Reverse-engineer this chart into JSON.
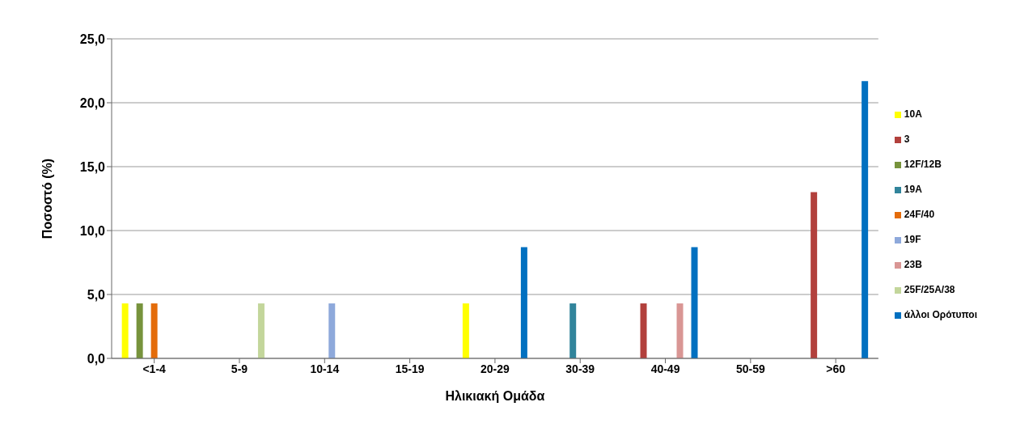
{
  "chart_data": {
    "type": "bar",
    "xlabel": "Ηλικιακή Ομάδα",
    "ylabel": "Ποσοστό (%)",
    "categories": [
      "<1-4",
      "5-9",
      "10-14",
      "15-19",
      "20-29",
      "30-39",
      "40-49",
      "50-59",
      ">60"
    ],
    "series": [
      {
        "name": "10A",
        "color": "#ffff00",
        "values": [
          4.3,
          0,
          0,
          0,
          4.3,
          0,
          0,
          0,
          0
        ]
      },
      {
        "name": "3",
        "color": "#b2403c",
        "values": [
          0,
          0,
          0,
          0,
          0,
          0,
          4.3,
          0,
          13.0
        ]
      },
      {
        "name": "12F/12B",
        "color": "#77933c",
        "values": [
          4.3,
          0,
          0,
          0,
          0,
          0,
          0,
          0,
          0
        ]
      },
      {
        "name": "19A",
        "color": "#31849b",
        "values": [
          0,
          0,
          0,
          0,
          0,
          4.3,
          0,
          0,
          0
        ]
      },
      {
        "name": "24F/40",
        "color": "#e46c0a",
        "values": [
          4.3,
          0,
          0,
          0,
          0,
          0,
          0,
          0,
          0
        ]
      },
      {
        "name": "19F",
        "color": "#8ea9db",
        "values": [
          0,
          0,
          4.3,
          0,
          0,
          0,
          0,
          0,
          0
        ]
      },
      {
        "name": "23B",
        "color": "#d99694",
        "values": [
          0,
          0,
          0,
          0,
          0,
          0,
          4.3,
          0,
          0
        ]
      },
      {
        "name": "25F/25A/38",
        "color": "#c3d69b",
        "values": [
          0,
          4.3,
          0,
          0,
          0,
          0,
          0,
          0,
          0
        ]
      },
      {
        "name": "άλλοι Ορότυποι",
        "color": "#0070c0",
        "values": [
          0,
          0,
          0,
          0,
          8.7,
          0,
          8.7,
          0,
          21.7
        ]
      }
    ],
    "ylim": [
      0,
      25
    ],
    "yticks": [
      {
        "value": 0,
        "label": "0,0"
      },
      {
        "value": 5,
        "label": "5,0"
      },
      {
        "value": 10,
        "label": "10,0"
      },
      {
        "value": 15,
        "label": "15,0"
      },
      {
        "value": 20,
        "label": "20,0"
      },
      {
        "value": 25,
        "label": "25,0"
      }
    ],
    "grid": "y",
    "legend": "right"
  }
}
